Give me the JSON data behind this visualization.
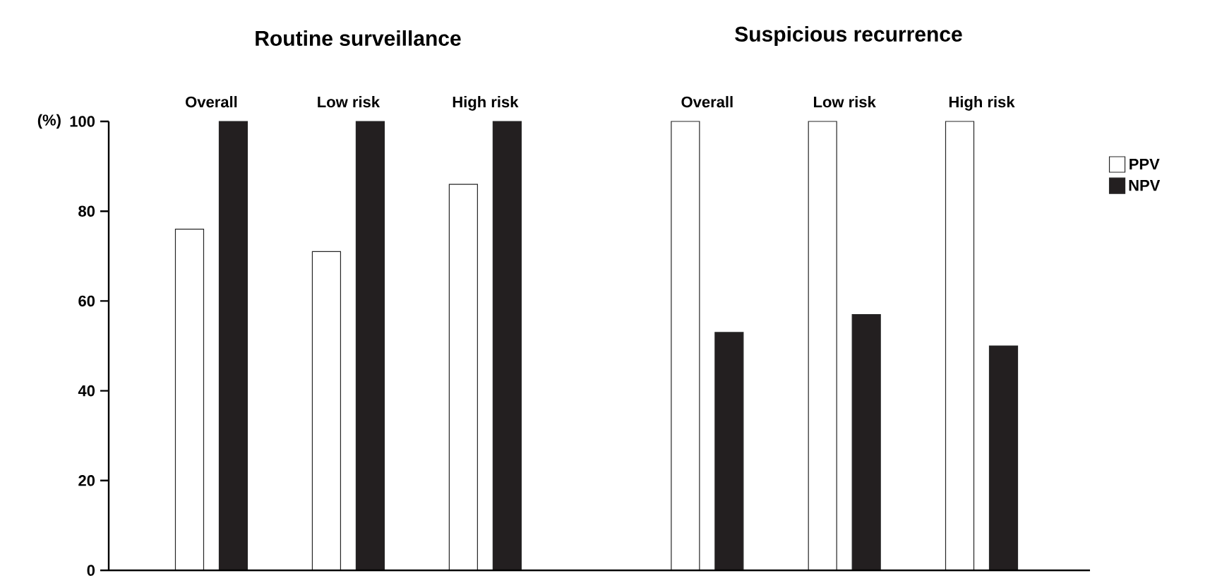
{
  "chart_data": [
    {
      "type": "bar",
      "title": "Routine surveillance",
      "ylabel": "(%)",
      "categories": [
        "Overall",
        "Low risk",
        "High risk"
      ],
      "series": [
        {
          "color": "#ffffff",
          "values": [
            76,
            71,
            86
          ]
        },
        {
          "color": "#231f20",
          "values": [
            100,
            100,
            100
          ]
        }
      ],
      "ylim": [
        0,
        100
      ],
      "yticks": [
        0,
        20,
        40,
        60,
        80,
        100
      ]
    },
    {
      "type": "bar",
      "title": "Suspicious recurrence",
      "categories": [
        "Overall",
        "Low risk",
        "High risk"
      ],
      "series": [
        {
          "name": "PPV",
          "color": "#ffffff",
          "values": [
            100,
            100,
            100
          ]
        },
        {
          "name": "NPV",
          "color": "#231f20",
          "values": [
            53,
            57,
            50
          ]
        }
      ],
      "ylim": [
        0,
        100
      ],
      "yticks": [
        0,
        20,
        40,
        60,
        80,
        100
      ],
      "tick_labels": "x",
      "legend": "right"
    }
  ]
}
